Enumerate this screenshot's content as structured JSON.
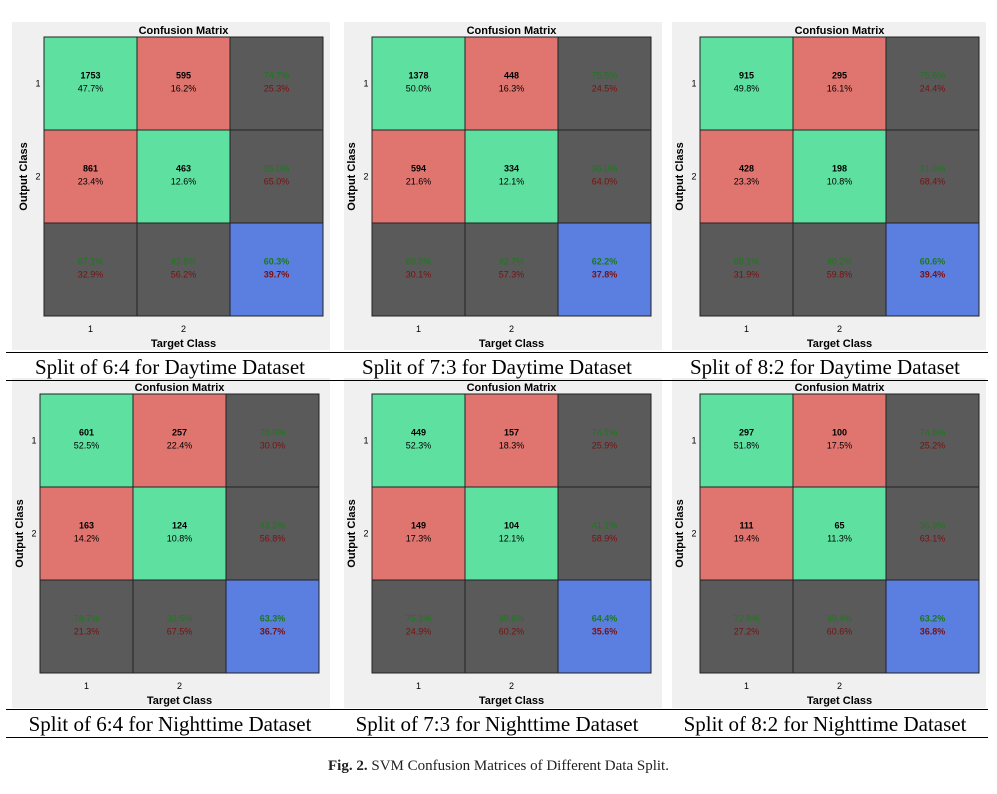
{
  "figure": {
    "caption_label": "Fig. 2.",
    "caption_text": " SVM Confusion Matrices of Different Data Split."
  },
  "colors": {
    "correct": "#5ee0a0",
    "wrong": "#e07570",
    "summary": "#5a5a5a",
    "overall": "#5b7fe0",
    "green_text": "#1a7a1a",
    "red_text": "#7a1010"
  },
  "chart_data": [
    {
      "type": "heatmap",
      "title": "Confusion Matrix",
      "xlabel": "Target Class",
      "ylabel": "Output Class",
      "x_ticks": [
        "1",
        "2"
      ],
      "y_ticks": [
        "1",
        "2"
      ],
      "caption": "Split of 6:4 for Daytime Dataset",
      "cells": [
        [
          {
            "count": "1753",
            "pct": "47.7%"
          },
          {
            "count": "595",
            "pct": "16.2%"
          }
        ],
        [
          {
            "count": "861",
            "pct": "23.4%"
          },
          {
            "count": "463",
            "pct": "12.6%"
          }
        ]
      ],
      "row_summary": [
        [
          "74.7%",
          "25.3%"
        ],
        [
          "35.0%",
          "65.0%"
        ]
      ],
      "col_summary": [
        [
          "67.1%",
          "32.9%"
        ],
        [
          "43.8%",
          "56.2%"
        ]
      ],
      "overall": [
        "60.3%",
        "39.7%"
      ]
    },
    {
      "type": "heatmap",
      "title": "Confusion Matrix",
      "xlabel": "Target Class",
      "ylabel": "Output Class",
      "x_ticks": [
        "1",
        "2"
      ],
      "y_ticks": [
        "1",
        "2"
      ],
      "caption": "Split of 7:3 for Daytime Dataset",
      "cells": [
        [
          {
            "count": "1378",
            "pct": "50.0%"
          },
          {
            "count": "448",
            "pct": "16.3%"
          }
        ],
        [
          {
            "count": "594",
            "pct": "21.6%"
          },
          {
            "count": "334",
            "pct": "12.1%"
          }
        ]
      ],
      "row_summary": [
        [
          "75.5%",
          "24.5%"
        ],
        [
          "36.0%",
          "64.0%"
        ]
      ],
      "col_summary": [
        [
          "69.9%",
          "30.1%"
        ],
        [
          "42.7%",
          "57.3%"
        ]
      ],
      "overall": [
        "62.2%",
        "37.8%"
      ]
    },
    {
      "type": "heatmap",
      "title": "Confusion Matrix",
      "xlabel": "Target Class",
      "ylabel": "Output Class",
      "x_ticks": [
        "1",
        "2"
      ],
      "y_ticks": [
        "1",
        "2"
      ],
      "caption": "Split of 8:2 for Daytime Dataset",
      "cells": [
        [
          {
            "count": "915",
            "pct": "49.8%"
          },
          {
            "count": "295",
            "pct": "16.1%"
          }
        ],
        [
          {
            "count": "428",
            "pct": "23.3%"
          },
          {
            "count": "198",
            "pct": "10.8%"
          }
        ]
      ],
      "row_summary": [
        [
          "75.6%",
          "24.4%"
        ],
        [
          "31.6%",
          "68.4%"
        ]
      ],
      "col_summary": [
        [
          "68.1%",
          "31.9%"
        ],
        [
          "40.2%",
          "59.8%"
        ]
      ],
      "overall": [
        "60.6%",
        "39.4%"
      ]
    },
    {
      "type": "heatmap",
      "title": "Confusion Matrix",
      "xlabel": "Target Class",
      "ylabel": "Output Class",
      "x_ticks": [
        "1",
        "2"
      ],
      "y_ticks": [
        "1",
        "2"
      ],
      "caption": "Split of 6:4 for Nighttime Dataset",
      "cells": [
        [
          {
            "count": "601",
            "pct": "52.5%"
          },
          {
            "count": "257",
            "pct": "22.4%"
          }
        ],
        [
          {
            "count": "163",
            "pct": "14.2%"
          },
          {
            "count": "124",
            "pct": "10.8%"
          }
        ]
      ],
      "row_summary": [
        [
          "70.0%",
          "30.0%"
        ],
        [
          "43.2%",
          "56.8%"
        ]
      ],
      "col_summary": [
        [
          "78.7%",
          "21.3%"
        ],
        [
          "32.5%",
          "67.5%"
        ]
      ],
      "overall": [
        "63.3%",
        "36.7%"
      ]
    },
    {
      "type": "heatmap",
      "title": "Confusion Matrix",
      "xlabel": "Target Class",
      "ylabel": "Output Class",
      "x_ticks": [
        "1",
        "2"
      ],
      "y_ticks": [
        "1",
        "2"
      ],
      "caption": "Split of 7:3 for Nighttime Dataset",
      "cells": [
        [
          {
            "count": "449",
            "pct": "52.3%"
          },
          {
            "count": "157",
            "pct": "18.3%"
          }
        ],
        [
          {
            "count": "149",
            "pct": "17.3%"
          },
          {
            "count": "104",
            "pct": "12.1%"
          }
        ]
      ],
      "row_summary": [
        [
          "74.1%",
          "25.9%"
        ],
        [
          "41.1%",
          "58.9%"
        ]
      ],
      "col_summary": [
        [
          "75.1%",
          "24.9%"
        ],
        [
          "39.8%",
          "60.2%"
        ]
      ],
      "overall": [
        "64.4%",
        "35.6%"
      ]
    },
    {
      "type": "heatmap",
      "title": "Confusion Matrix",
      "xlabel": "Target Class",
      "ylabel": "Output Class",
      "x_ticks": [
        "1",
        "2"
      ],
      "y_ticks": [
        "1",
        "2"
      ],
      "caption": "Split of 8:2 for Nighttime Dataset",
      "cells": [
        [
          {
            "count": "297",
            "pct": "51.8%"
          },
          {
            "count": "100",
            "pct": "17.5%"
          }
        ],
        [
          {
            "count": "111",
            "pct": "19.4%"
          },
          {
            "count": "65",
            "pct": "11.3%"
          }
        ]
      ],
      "row_summary": [
        [
          "74.8%",
          "25.2%"
        ],
        [
          "36.9%",
          "63.1%"
        ]
      ],
      "col_summary": [
        [
          "72.8%",
          "27.2%"
        ],
        [
          "39.4%",
          "60.6%"
        ]
      ],
      "overall": [
        "63.2%",
        "36.8%"
      ]
    }
  ]
}
